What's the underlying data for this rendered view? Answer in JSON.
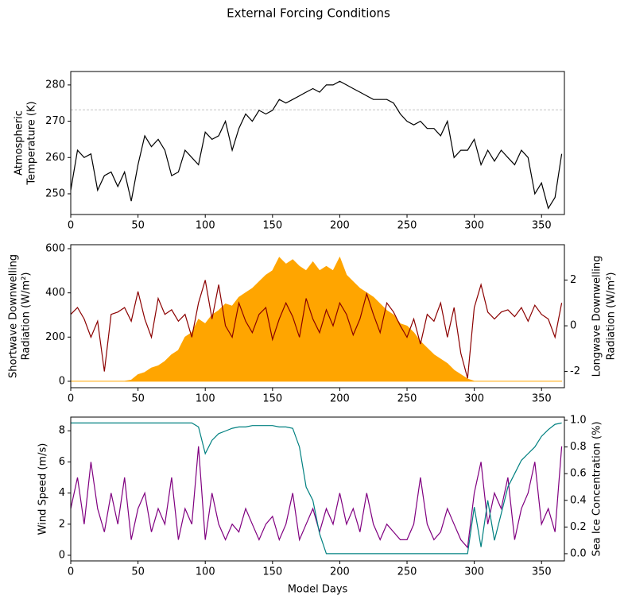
{
  "title": "External Forcing Conditions",
  "chart_data": [
    {
      "type": "line",
      "ylabel": [
        "Atmospheric",
        "Temperature (K)"
      ],
      "x": [
        0,
        5,
        10,
        15,
        20,
        25,
        30,
        35,
        40,
        45,
        50,
        55,
        60,
        65,
        70,
        75,
        80,
        85,
        90,
        95,
        100,
        105,
        110,
        115,
        120,
        125,
        130,
        135,
        140,
        145,
        150,
        155,
        160,
        165,
        170,
        175,
        180,
        185,
        190,
        195,
        200,
        205,
        210,
        215,
        220,
        225,
        230,
        235,
        240,
        245,
        250,
        255,
        260,
        265,
        270,
        275,
        280,
        285,
        290,
        295,
        300,
        305,
        310,
        315,
        320,
        325,
        330,
        335,
        340,
        345,
        350,
        355,
        360,
        365
      ],
      "xlim": [
        0,
        367
      ],
      "xticks": [
        0,
        50,
        100,
        150,
        200,
        250,
        300,
        350
      ],
      "ylim": [
        244.3,
        283.7
      ],
      "yticks": [
        250,
        260,
        270,
        280
      ],
      "hline": 273.15,
      "hline_color": "#bbbbbb",
      "series": [
        {
          "color": "#000000",
          "values": [
            251,
            262,
            260,
            261,
            251,
            255,
            256,
            252,
            256,
            248,
            258,
            266,
            263,
            265,
            262,
            255,
            256,
            262,
            260,
            258,
            267,
            265,
            266,
            270,
            262,
            268,
            272,
            270,
            273,
            272,
            273,
            276,
            275,
            276,
            277,
            278,
            279,
            278,
            280,
            280,
            281,
            280,
            279,
            278,
            277,
            276,
            276,
            276,
            275,
            272,
            270,
            269,
            270,
            268,
            268,
            266,
            270,
            260,
            262,
            262,
            265,
            258,
            262,
            259,
            262,
            260,
            258,
            262,
            260,
            250,
            253,
            246,
            249,
            261
          ]
        }
      ]
    },
    {
      "type": "line",
      "ylabel": [
        "Shortwave Downwelling",
        "Radiation (W/m²)"
      ],
      "y2label": [
        "Longwave Downwelling",
        "Radiation (W/m²)"
      ],
      "x": [
        0,
        5,
        10,
        15,
        20,
        25,
        30,
        35,
        40,
        45,
        50,
        55,
        60,
        65,
        70,
        75,
        80,
        85,
        90,
        95,
        100,
        105,
        110,
        115,
        120,
        125,
        130,
        135,
        140,
        145,
        150,
        155,
        160,
        165,
        170,
        175,
        180,
        185,
        190,
        195,
        200,
        205,
        210,
        215,
        220,
        225,
        230,
        235,
        240,
        245,
        250,
        255,
        260,
        265,
        270,
        275,
        280,
        285,
        290,
        295,
        300,
        305,
        310,
        315,
        320,
        325,
        330,
        335,
        340,
        345,
        350,
        355,
        360,
        365
      ],
      "xlim": [
        0,
        367
      ],
      "xticks": [
        0,
        50,
        100,
        150,
        200,
        250,
        300,
        350
      ],
      "ylim": [
        -29,
        618
      ],
      "yticks": [
        0,
        200,
        400,
        600
      ],
      "y2lim": [
        -2.71,
        3.55
      ],
      "y2ticks": [
        -2,
        0,
        2
      ],
      "series": [
        {
          "color": "#ffa500",
          "fill": true,
          "values": [
            0,
            0,
            0,
            0,
            0,
            0,
            0,
            0,
            0,
            5,
            30,
            40,
            60,
            70,
            90,
            120,
            140,
            200,
            220,
            280,
            260,
            300,
            320,
            350,
            340,
            380,
            400,
            420,
            450,
            480,
            500,
            560,
            530,
            550,
            520,
            500,
            540,
            500,
            520,
            500,
            560,
            480,
            450,
            420,
            400,
            380,
            350,
            320,
            300,
            260,
            250,
            220,
            180,
            150,
            120,
            100,
            80,
            50,
            30,
            10,
            0,
            0,
            0,
            0,
            0,
            0,
            0,
            0,
            0,
            0,
            0,
            0,
            0,
            0
          ]
        },
        {
          "color": "#8b0000",
          "axis": "y2",
          "values": [
            0.5,
            0.8,
            0.3,
            -0.5,
            0.2,
            -2,
            0.5,
            0.6,
            0.8,
            0.2,
            1.5,
            0.3,
            -0.5,
            1.2,
            0.5,
            0.7,
            0.2,
            0.5,
            -0.5,
            1.0,
            2.0,
            0.3,
            1.8,
            0.0,
            -0.5,
            1.0,
            0.2,
            -0.3,
            0.5,
            0.8,
            -0.6,
            0.3,
            1.0,
            0.4,
            -0.5,
            1.2,
            0.3,
            -0.3,
            0.7,
            0.0,
            1.0,
            0.5,
            -0.4,
            0.3,
            1.4,
            0.5,
            -0.3,
            1.0,
            0.6,
            0.0,
            -0.5,
            0.3,
            -0.8,
            0.5,
            0.2,
            1.0,
            -0.5,
            0.8,
            -1.2,
            -2.3,
            0.8,
            1.8,
            0.6,
            0.3,
            0.6,
            0.7,
            0.4,
            0.8,
            0.2,
            0.9,
            0.5,
            0.3,
            -0.5,
            1.0
          ]
        }
      ]
    },
    {
      "type": "line",
      "ylabel": [
        "Wind Speed (m/s)"
      ],
      "y2label": [
        "Sea Ice Concentration (%)"
      ],
      "xlabel": "Model Days",
      "x": [
        0,
        5,
        10,
        15,
        20,
        25,
        30,
        35,
        40,
        45,
        50,
        55,
        60,
        65,
        70,
        75,
        80,
        85,
        90,
        95,
        100,
        105,
        110,
        115,
        120,
        125,
        130,
        135,
        140,
        145,
        150,
        155,
        160,
        165,
        170,
        175,
        180,
        185,
        190,
        195,
        200,
        205,
        210,
        215,
        220,
        225,
        230,
        235,
        240,
        245,
        250,
        255,
        260,
        265,
        270,
        275,
        280,
        285,
        290,
        295,
        300,
        305,
        310,
        315,
        320,
        325,
        330,
        335,
        340,
        345,
        350,
        355,
        360,
        365
      ],
      "xlim": [
        0,
        367
      ],
      "xticks": [
        0,
        50,
        100,
        150,
        200,
        250,
        300,
        350
      ],
      "ylim": [
        -0.36,
        8.88
      ],
      "yticks": [
        0,
        2,
        4,
        6,
        8
      ],
      "y2lim": [
        -0.054,
        1.024
      ],
      "y2ticks": [
        {
          "value": 0,
          "label": "0.0"
        },
        0.2,
        0.4,
        0.6,
        0.8,
        {
          "value": 1,
          "label": "1.0"
        }
      ],
      "series": [
        {
          "color": "#800080",
          "values": [
            3,
            5,
            2,
            6,
            3,
            1.5,
            4,
            2,
            5,
            1,
            3,
            4,
            1.5,
            3,
            2,
            5,
            1,
            3,
            2,
            7,
            1,
            4,
            2,
            1,
            2,
            1.5,
            3,
            2,
            1,
            2,
            2.5,
            1,
            2,
            4,
            1,
            2,
            3,
            1.5,
            3,
            2,
            4,
            2,
            3,
            1.5,
            4,
            2,
            1,
            2,
            1.5,
            1,
            1,
            2,
            5,
            2,
            1,
            1.5,
            3,
            2,
            1,
            0.5,
            4,
            6,
            2,
            4,
            3,
            5,
            1,
            3,
            4,
            6,
            2,
            3,
            1.5,
            7
          ]
        },
        {
          "color": "#008080",
          "axis": "y2",
          "values": [
            0.98,
            0.98,
            0.98,
            0.98,
            0.98,
            0.98,
            0.98,
            0.98,
            0.98,
            0.98,
            0.98,
            0.98,
            0.98,
            0.98,
            0.98,
            0.98,
            0.98,
            0.98,
            0.98,
            0.95,
            0.75,
            0.85,
            0.9,
            0.92,
            0.94,
            0.95,
            0.95,
            0.96,
            0.96,
            0.96,
            0.96,
            0.95,
            0.95,
            0.94,
            0.8,
            0.5,
            0.4,
            0.15,
            0.0,
            0.0,
            0.0,
            0.0,
            0.0,
            0.0,
            0.0,
            0.0,
            0.0,
            0.0,
            0.0,
            0.0,
            0.0,
            0.0,
            0.0,
            0.0,
            0.0,
            0.0,
            0.0,
            0.0,
            0.0,
            0.0,
            0.35,
            0.05,
            0.4,
            0.1,
            0.3,
            0.5,
            0.6,
            0.7,
            0.75,
            0.8,
            0.88,
            0.93,
            0.97,
            0.98
          ]
        }
      ]
    }
  ]
}
